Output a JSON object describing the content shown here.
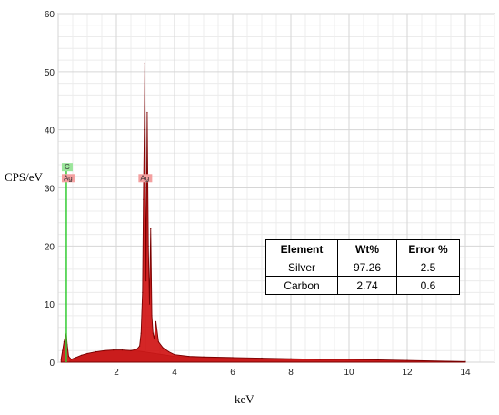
{
  "chart_data": {
    "type": "line",
    "xlabel": "keV",
    "ylabel": "CPS/eV",
    "xlim": [
      0,
      15
    ],
    "ylim": [
      0,
      60
    ],
    "x_ticks": [
      2,
      4,
      6,
      8,
      10,
      12,
      14
    ],
    "y_ticks": [
      0,
      10,
      20,
      30,
      40,
      50,
      60
    ],
    "grid": true,
    "colors": {
      "spectrum": "#cc0000",
      "background": "#bdbdbd",
      "carbon_line": "#33cc33",
      "silver_tag": "#f4a0a0",
      "carbon_tag": "#9be59b"
    },
    "markers": [
      {
        "element": "C",
        "x": 0.28,
        "tag": "C"
      },
      {
        "element": "Ag",
        "x": 0.3,
        "tag": "Ag"
      },
      {
        "element": "Ag",
        "x": 2.98,
        "tag": "Ag"
      }
    ],
    "spectrum": [
      [
        0.1,
        0.5
      ],
      [
        0.15,
        2.0
      ],
      [
        0.2,
        3.5
      ],
      [
        0.25,
        4.5
      ],
      [
        0.28,
        5.0
      ],
      [
        0.31,
        3.0
      ],
      [
        0.36,
        1.0
      ],
      [
        0.45,
        0.5
      ],
      [
        0.6,
        0.8
      ],
      [
        0.8,
        1.2
      ],
      [
        1.0,
        1.5
      ],
      [
        1.3,
        1.8
      ],
      [
        1.6,
        2.0
      ],
      [
        1.9,
        2.1
      ],
      [
        2.2,
        2.1
      ],
      [
        2.5,
        2.0
      ],
      [
        2.7,
        2.2
      ],
      [
        2.8,
        2.8
      ],
      [
        2.85,
        5.0
      ],
      [
        2.9,
        12.0
      ],
      [
        2.93,
        28.0
      ],
      [
        2.96,
        40.0
      ],
      [
        2.98,
        51.5
      ],
      [
        3.0,
        30.0
      ],
      [
        3.02,
        14.0
      ],
      [
        3.06,
        43.0
      ],
      [
        3.1,
        20.0
      ],
      [
        3.14,
        10.0
      ],
      [
        3.18,
        23.0
      ],
      [
        3.22,
        8.0
      ],
      [
        3.26,
        5.0
      ],
      [
        3.3,
        4.0
      ],
      [
        3.36,
        7.0
      ],
      [
        3.45,
        3.5
      ],
      [
        3.6,
        2.5
      ],
      [
        3.8,
        1.8
      ],
      [
        4.0,
        1.3
      ],
      [
        4.5,
        1.0
      ],
      [
        5.0,
        0.9
      ],
      [
        6.0,
        0.8
      ],
      [
        7.0,
        0.7
      ],
      [
        8.0,
        0.6
      ],
      [
        9.0,
        0.5
      ],
      [
        10.0,
        0.5
      ],
      [
        11.0,
        0.4
      ],
      [
        12.0,
        0.3
      ],
      [
        14.0,
        0.1
      ]
    ],
    "background_hump": [
      [
        0.4,
        0.3
      ],
      [
        0.8,
        1.2
      ],
      [
        1.2,
        1.7
      ],
      [
        1.6,
        1.9
      ],
      [
        2.0,
        2.0
      ],
      [
        2.4,
        2.0
      ],
      [
        2.8,
        1.9
      ],
      [
        3.2,
        1.6
      ],
      [
        3.6,
        1.3
      ],
      [
        4.0,
        1.0
      ],
      [
        5.0,
        0.8
      ],
      [
        6.0,
        0.6
      ],
      [
        7.0,
        0.5
      ],
      [
        8.0,
        0.45
      ],
      [
        9.0,
        0.4
      ],
      [
        10.0,
        0.35
      ],
      [
        11.0,
        0.3
      ],
      [
        12.0,
        0.25
      ],
      [
        13.0,
        0.15
      ],
      [
        14.0,
        0.1
      ]
    ]
  },
  "table": {
    "headers": [
      "Element",
      "Wt%",
      "Error %"
    ],
    "rows": [
      [
        "Silver",
        "97.26",
        "2.5"
      ],
      [
        "Carbon",
        "2.74",
        "0.6"
      ]
    ]
  }
}
